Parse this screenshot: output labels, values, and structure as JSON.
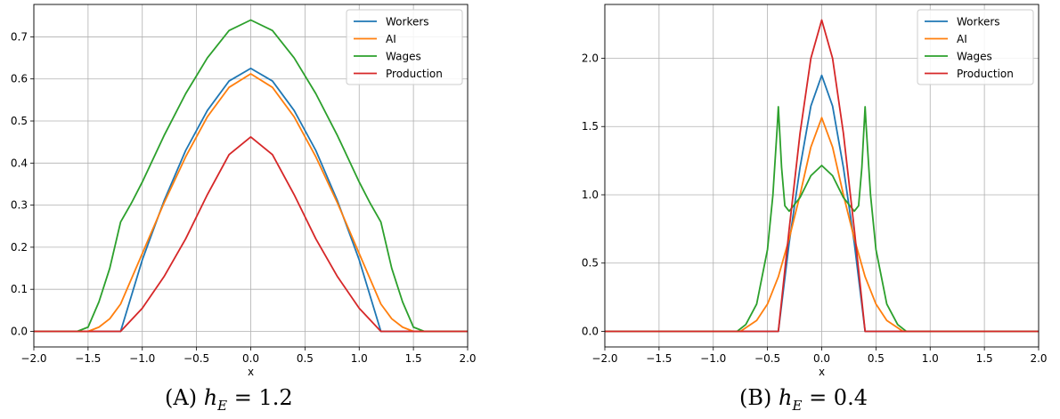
{
  "chart_data": [
    {
      "type": "line",
      "caption": {
        "letter": "(A)",
        "var": "h",
        "sub": "E",
        "rest": " = 1.2"
      },
      "xlabel": "x",
      "xlim": [
        -2.0,
        2.0
      ],
      "ylim": [
        -0.037,
        0.777
      ],
      "xticks": [
        -2.0,
        -1.5,
        -1.0,
        -0.5,
        0.0,
        0.5,
        1.0,
        1.5,
        2.0
      ],
      "xticklabels": [
        "−2.0",
        "−1.5",
        "−1.0",
        "−0.5",
        "0.0",
        "0.5",
        "1.0",
        "1.5",
        "2.0"
      ],
      "yticks": [
        0.0,
        0.1,
        0.2,
        0.3,
        0.4,
        0.5,
        0.6,
        0.7
      ],
      "yticklabels": [
        "0.0",
        "0.1",
        "0.2",
        "0.3",
        "0.4",
        "0.5",
        "0.6",
        "0.7"
      ],
      "grid": true,
      "legend_position": "top-right",
      "series": [
        {
          "name": "Workers",
          "color": "#1f77b4",
          "x": [
            -2.0,
            -1.2,
            -1.0,
            -0.8,
            -0.6,
            -0.4,
            -0.2,
            0.0,
            0.2,
            0.4,
            0.6,
            0.8,
            1.0,
            1.2,
            2.0
          ],
          "y": [
            0.0,
            0.0,
            0.17,
            0.31,
            0.43,
            0.525,
            0.595,
            0.625,
            0.595,
            0.525,
            0.43,
            0.31,
            0.17,
            0.0,
            0.0
          ]
        },
        {
          "name": "AI",
          "color": "#ff7f0e",
          "x": [
            -2.0,
            -1.5,
            -1.4,
            -1.3,
            -1.2,
            -1.0,
            -0.8,
            -0.6,
            -0.4,
            -0.2,
            0.0,
            0.2,
            0.4,
            0.6,
            0.8,
            1.0,
            1.2,
            1.3,
            1.4,
            1.5,
            2.0
          ],
          "y": [
            0.0,
            0.0,
            0.01,
            0.03,
            0.065,
            0.185,
            0.305,
            0.415,
            0.51,
            0.58,
            0.612,
            0.58,
            0.51,
            0.415,
            0.305,
            0.185,
            0.065,
            0.03,
            0.01,
            0.0,
            0.0
          ]
        },
        {
          "name": "Wages",
          "color": "#2ca02c",
          "x": [
            -2.0,
            -1.6,
            -1.5,
            -1.4,
            -1.3,
            -1.2,
            -1.1,
            -1.0,
            -0.8,
            -0.6,
            -0.4,
            -0.2,
            0.0,
            0.2,
            0.4,
            0.6,
            0.8,
            1.0,
            1.1,
            1.2,
            1.3,
            1.4,
            1.5,
            1.6,
            2.0
          ],
          "y": [
            0.0,
            0.0,
            0.01,
            0.07,
            0.15,
            0.26,
            0.305,
            0.355,
            0.465,
            0.565,
            0.65,
            0.715,
            0.74,
            0.715,
            0.65,
            0.565,
            0.465,
            0.355,
            0.305,
            0.26,
            0.15,
            0.07,
            0.01,
            0.0,
            0.0
          ]
        },
        {
          "name": "Production",
          "color": "#d62728",
          "x": [
            -2.0,
            -1.2,
            -1.0,
            -0.8,
            -0.6,
            -0.4,
            -0.2,
            0.0,
            0.2,
            0.4,
            0.6,
            0.8,
            1.0,
            1.2,
            2.0
          ],
          "y": [
            0.0,
            0.0,
            0.055,
            0.13,
            0.22,
            0.325,
            0.42,
            0.462,
            0.42,
            0.325,
            0.22,
            0.13,
            0.055,
            0.0,
            0.0
          ]
        }
      ]
    },
    {
      "type": "line",
      "caption": {
        "letter": "(B)",
        "var": "h",
        "sub": "E",
        "rest": " = 0.4"
      },
      "xlabel": "x",
      "xlim": [
        -2.0,
        2.0
      ],
      "ylim": [
        -0.114,
        2.394
      ],
      "xticks": [
        -2.0,
        -1.5,
        -1.0,
        -0.5,
        0.0,
        0.5,
        1.0,
        1.5,
        2.0
      ],
      "xticklabels": [
        "−2.0",
        "−1.5",
        "−1.0",
        "−0.5",
        "0.0",
        "0.5",
        "1.0",
        "1.5",
        "2.0"
      ],
      "yticks": [
        0.0,
        0.5,
        1.0,
        1.5,
        2.0
      ],
      "yticklabels": [
        "0.0",
        "0.5",
        "1.0",
        "1.5",
        "2.0"
      ],
      "grid": true,
      "legend_position": "top-right",
      "series": [
        {
          "name": "Workers",
          "color": "#1f77b4",
          "x": [
            -2.0,
            -0.4,
            -0.3,
            -0.2,
            -0.1,
            0.0,
            0.1,
            0.2,
            0.3,
            0.4,
            2.0
          ],
          "y": [
            0.0,
            0.0,
            0.65,
            1.2,
            1.65,
            1.875,
            1.65,
            1.2,
            0.65,
            0.0,
            0.0
          ]
        },
        {
          "name": "AI",
          "color": "#ff7f0e",
          "x": [
            -2.0,
            -0.75,
            -0.6,
            -0.5,
            -0.4,
            -0.3,
            -0.2,
            -0.1,
            0.0,
            0.1,
            0.2,
            0.3,
            0.4,
            0.5,
            0.6,
            0.75,
            2.0
          ],
          "y": [
            0.0,
            0.0,
            0.08,
            0.2,
            0.4,
            0.68,
            1.0,
            1.35,
            1.565,
            1.35,
            1.0,
            0.68,
            0.4,
            0.2,
            0.08,
            0.0,
            0.0
          ]
        },
        {
          "name": "Wages",
          "color": "#2ca02c",
          "x": [
            -2.0,
            -0.78,
            -0.7,
            -0.6,
            -0.5,
            -0.45,
            -0.41,
            -0.4,
            -0.37,
            -0.34,
            -0.3,
            -0.2,
            -0.1,
            0.0,
            0.1,
            0.2,
            0.3,
            0.34,
            0.37,
            0.4,
            0.41,
            0.45,
            0.5,
            0.6,
            0.7,
            0.78,
            2.0
          ],
          "y": [
            0.0,
            0.0,
            0.05,
            0.2,
            0.6,
            1.0,
            1.5,
            1.645,
            1.2,
            0.92,
            0.88,
            0.98,
            1.14,
            1.215,
            1.14,
            0.98,
            0.88,
            0.92,
            1.2,
            1.645,
            1.5,
            1.0,
            0.6,
            0.2,
            0.05,
            0.0,
            0.0
          ]
        },
        {
          "name": "Production",
          "color": "#d62728",
          "x": [
            -2.0,
            -0.4,
            -0.3,
            -0.2,
            -0.1,
            0.0,
            0.1,
            0.2,
            0.3,
            0.4,
            2.0
          ],
          "y": [
            0.0,
            0.0,
            0.75,
            1.45,
            2.0,
            2.28,
            2.0,
            1.45,
            0.75,
            0.0,
            0.0
          ]
        }
      ]
    }
  ]
}
